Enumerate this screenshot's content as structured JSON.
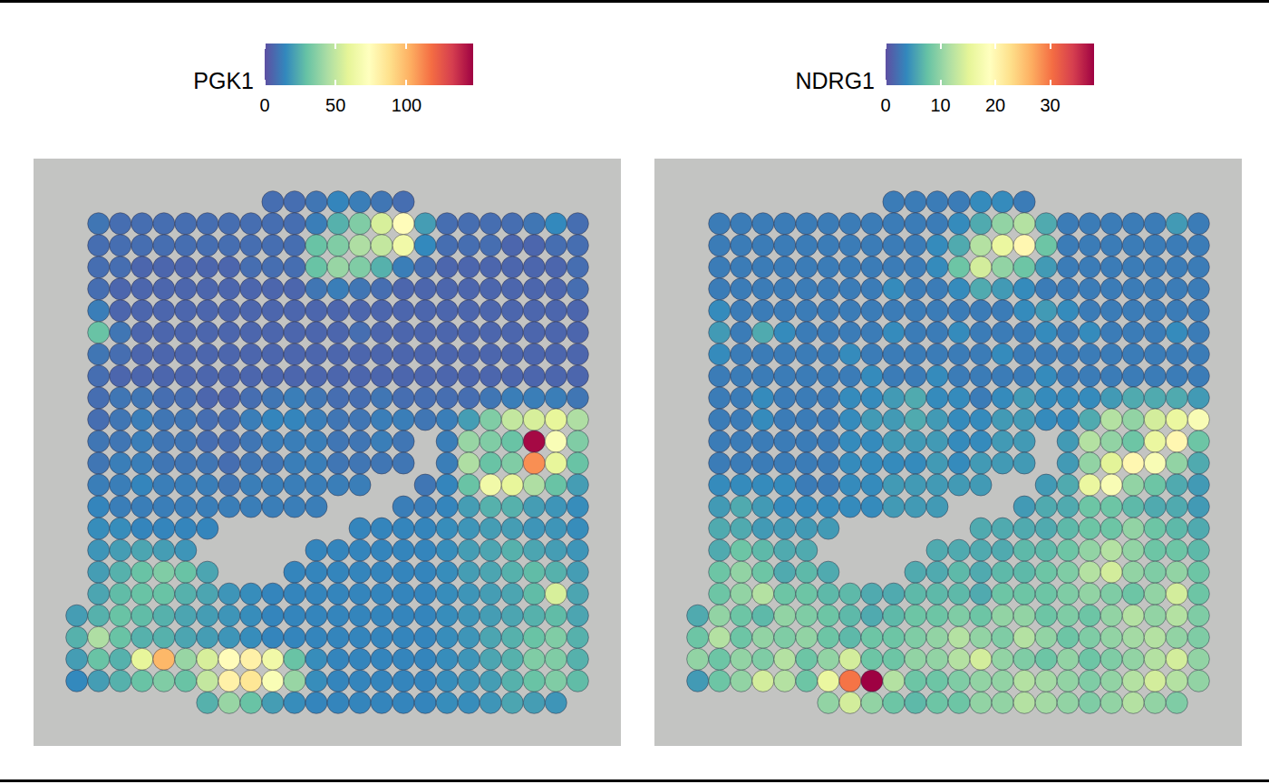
{
  "chart_data": [
    {
      "type": "heatmap",
      "title": "PGK1",
      "tick_labels": false,
      "colorbar": {
        "range": [
          0,
          147
        ],
        "ticks": [
          0,
          50,
          100
        ]
      },
      "cells": [
        [
          null,
          null,
          null,
          null,
          null,
          null,
          null,
          null,
          null,
          8,
          8,
          10,
          14,
          12,
          10,
          8,
          null,
          null,
          null,
          null,
          null,
          null,
          null,
          null
        ],
        [
          null,
          10,
          8,
          8,
          8,
          8,
          8,
          8,
          8,
          8,
          8,
          12,
          25,
          35,
          55,
          75,
          20,
          8,
          8,
          8,
          8,
          10,
          15,
          8
        ],
        [
          null,
          8,
          8,
          8,
          8,
          8,
          8,
          8,
          8,
          8,
          8,
          30,
          35,
          45,
          50,
          65,
          15,
          8,
          8,
          8,
          6,
          6,
          8,
          8
        ],
        [
          null,
          8,
          8,
          6,
          6,
          6,
          6,
          6,
          8,
          8,
          8,
          30,
          40,
          35,
          25,
          12,
          8,
          6,
          6,
          6,
          6,
          6,
          6,
          8
        ],
        [
          null,
          8,
          6,
          6,
          6,
          6,
          6,
          6,
          6,
          6,
          6,
          10,
          12,
          10,
          8,
          6,
          6,
          6,
          6,
          6,
          6,
          6,
          6,
          8
        ],
        [
          null,
          12,
          6,
          6,
          6,
          6,
          6,
          6,
          6,
          6,
          6,
          6,
          6,
          6,
          6,
          6,
          6,
          6,
          6,
          6,
          6,
          6,
          6,
          6
        ],
        [
          null,
          30,
          10,
          6,
          6,
          6,
          6,
          6,
          6,
          6,
          6,
          6,
          6,
          8,
          6,
          6,
          6,
          6,
          6,
          6,
          6,
          6,
          6,
          6
        ],
        [
          null,
          10,
          8,
          6,
          6,
          6,
          6,
          6,
          6,
          6,
          6,
          6,
          6,
          6,
          6,
          6,
          6,
          6,
          6,
          6,
          6,
          6,
          6,
          6
        ],
        [
          null,
          8,
          6,
          6,
          6,
          6,
          6,
          6,
          6,
          6,
          6,
          6,
          6,
          6,
          6,
          6,
          6,
          6,
          6,
          6,
          6,
          6,
          6,
          6
        ],
        [
          null,
          8,
          10,
          10,
          8,
          8,
          6,
          6,
          8,
          10,
          12,
          10,
          8,
          8,
          10,
          8,
          8,
          8,
          8,
          10,
          12,
          12,
          12,
          10
        ],
        [
          null,
          8,
          10,
          12,
          10,
          10,
          8,
          8,
          12,
          14,
          14,
          12,
          10,
          10,
          12,
          12,
          10,
          12,
          20,
          35,
          50,
          55,
          60,
          45
        ],
        [
          null,
          10,
          10,
          12,
          10,
          10,
          8,
          8,
          10,
          12,
          12,
          12,
          10,
          10,
          12,
          10,
          null,
          12,
          40,
          35,
          30,
          145,
          70,
          35
        ],
        [
          null,
          10,
          12,
          12,
          10,
          10,
          10,
          8,
          10,
          10,
          12,
          12,
          10,
          10,
          10,
          10,
          null,
          12,
          45,
          30,
          35,
          110,
          60,
          30
        ],
        [
          null,
          12,
          12,
          14,
          12,
          12,
          12,
          10,
          12,
          12,
          12,
          12,
          12,
          12,
          null,
          null,
          10,
          14,
          30,
          65,
          60,
          45,
          30,
          20
        ],
        [
          null,
          14,
          12,
          12,
          12,
          12,
          12,
          12,
          12,
          12,
          12,
          12,
          null,
          null,
          null,
          12,
          12,
          14,
          20,
          25,
          25,
          20,
          18,
          16
        ],
        [
          null,
          16,
          16,
          14,
          14,
          14,
          14,
          null,
          null,
          null,
          null,
          null,
          null,
          14,
          14,
          14,
          14,
          16,
          18,
          20,
          20,
          18,
          18,
          16
        ],
        [
          null,
          18,
          20,
          22,
          20,
          18,
          null,
          null,
          null,
          null,
          null,
          14,
          14,
          14,
          14,
          14,
          14,
          16,
          20,
          22,
          25,
          22,
          20,
          18
        ],
        [
          null,
          20,
          25,
          30,
          35,
          30,
          22,
          null,
          null,
          null,
          14,
          14,
          14,
          14,
          14,
          14,
          14,
          16,
          20,
          22,
          25,
          28,
          25,
          20
        ],
        [
          null,
          22,
          28,
          30,
          30,
          25,
          22,
          18,
          16,
          14,
          14,
          14,
          14,
          14,
          14,
          14,
          14,
          16,
          18,
          20,
          22,
          28,
          55,
          22
        ],
        [
          20,
          25,
          30,
          28,
          25,
          22,
          20,
          18,
          16,
          14,
          14,
          14,
          14,
          14,
          14,
          14,
          14,
          16,
          18,
          20,
          22,
          25,
          28,
          22
        ],
        [
          25,
          45,
          30,
          25,
          25,
          22,
          20,
          18,
          16,
          14,
          14,
          14,
          14,
          14,
          14,
          14,
          14,
          16,
          18,
          22,
          25,
          30,
          35,
          25
        ],
        [
          20,
          30,
          25,
          60,
          100,
          40,
          55,
          75,
          80,
          65,
          30,
          16,
          14,
          14,
          14,
          14,
          14,
          16,
          18,
          22,
          25,
          35,
          35,
          25
        ],
        [
          15,
          20,
          25,
          30,
          35,
          30,
          50,
          80,
          85,
          70,
          40,
          16,
          14,
          14,
          14,
          14,
          14,
          16,
          18,
          20,
          25,
          30,
          35,
          28
        ],
        [
          null,
          null,
          null,
          null,
          null,
          null,
          25,
          40,
          30,
          20,
          16,
          14,
          14,
          14,
          14,
          14,
          14,
          16,
          16,
          18,
          22,
          20,
          18,
          null
        ]
      ]
    },
    {
      "type": "heatmap",
      "title": "NDRG1",
      "tick_labels": false,
      "colorbar": {
        "range": [
          0,
          38
        ],
        "ticks": [
          0,
          10,
          20,
          30
        ]
      },
      "cells": [
        [
          null,
          null,
          null,
          null,
          null,
          null,
          null,
          null,
          null,
          3,
          3,
          3,
          3,
          4,
          4,
          3,
          null,
          null,
          null,
          null,
          null,
          null,
          null,
          null
        ],
        [
          null,
          3,
          3,
          3,
          3,
          3,
          3,
          3,
          3,
          3,
          3,
          3,
          4,
          6,
          10,
          12,
          6,
          3,
          3,
          3,
          3,
          3,
          5,
          3
        ],
        [
          null,
          3,
          3,
          3,
          3,
          3,
          3,
          3,
          3,
          3,
          3,
          4,
          6,
          12,
          16,
          20,
          8,
          3,
          3,
          3,
          3,
          3,
          3,
          3
        ],
        [
          null,
          3,
          3,
          3,
          3,
          3,
          3,
          3,
          3,
          3,
          3,
          4,
          8,
          14,
          10,
          8,
          5,
          3,
          3,
          3,
          3,
          3,
          3,
          3
        ],
        [
          null,
          3,
          3,
          3,
          3,
          3,
          3,
          3,
          3,
          4,
          3,
          3,
          4,
          6,
          5,
          4,
          3,
          3,
          3,
          3,
          3,
          3,
          3,
          3
        ],
        [
          null,
          4,
          3,
          3,
          3,
          3,
          3,
          3,
          3,
          3,
          3,
          3,
          3,
          3,
          3,
          4,
          5,
          4,
          3,
          3,
          3,
          3,
          3,
          3
        ],
        [
          null,
          5,
          3,
          6,
          4,
          3,
          3,
          3,
          3,
          4,
          3,
          3,
          4,
          3,
          3,
          3,
          4,
          3,
          4,
          3,
          3,
          3,
          4,
          3
        ],
        [
          null,
          4,
          3,
          3,
          3,
          3,
          3,
          4,
          3,
          3,
          3,
          3,
          3,
          3,
          4,
          3,
          3,
          3,
          3,
          3,
          3,
          3,
          3,
          3
        ],
        [
          null,
          3,
          3,
          3,
          3,
          3,
          3,
          3,
          4,
          3,
          3,
          4,
          3,
          3,
          3,
          3,
          4,
          3,
          3,
          3,
          3,
          3,
          3,
          3
        ],
        [
          null,
          3,
          3,
          4,
          3,
          3,
          3,
          4,
          4,
          5,
          6,
          4,
          4,
          3,
          4,
          5,
          4,
          4,
          4,
          5,
          6,
          6,
          6,
          5
        ],
        [
          null,
          3,
          3,
          4,
          3,
          3,
          3,
          4,
          5,
          5,
          6,
          5,
          4,
          4,
          5,
          5,
          4,
          4,
          6,
          12,
          10,
          14,
          16,
          18
        ],
        [
          null,
          3,
          3,
          3,
          3,
          3,
          3,
          4,
          4,
          5,
          5,
          5,
          4,
          4,
          5,
          5,
          null,
          5,
          12,
          10,
          8,
          16,
          20,
          8
        ],
        [
          null,
          3,
          3,
          3,
          3,
          3,
          3,
          4,
          4,
          4,
          4,
          5,
          4,
          5,
          5,
          5,
          null,
          5,
          10,
          15,
          20,
          18,
          10,
          6
        ],
        [
          null,
          4,
          4,
          4,
          4,
          3,
          3,
          4,
          4,
          5,
          5,
          5,
          5,
          5,
          null,
          null,
          5,
          6,
          16,
          18,
          10,
          8,
          6,
          5
        ],
        [
          null,
          5,
          6,
          5,
          4,
          4,
          4,
          4,
          4,
          5,
          5,
          5,
          null,
          null,
          null,
          5,
          6,
          6,
          8,
          8,
          7,
          6,
          6,
          5
        ],
        [
          null,
          6,
          6,
          5,
          5,
          5,
          5,
          null,
          null,
          null,
          null,
          null,
          null,
          6,
          6,
          6,
          6,
          7,
          8,
          8,
          10,
          8,
          7,
          6
        ],
        [
          null,
          6,
          8,
          7,
          6,
          6,
          null,
          null,
          null,
          null,
          null,
          6,
          6,
          6,
          6,
          7,
          7,
          8,
          10,
          12,
          10,
          8,
          8,
          7
        ],
        [
          null,
          8,
          10,
          8,
          6,
          7,
          6,
          null,
          null,
          null,
          6,
          6,
          7,
          6,
          7,
          7,
          8,
          9,
          12,
          14,
          10,
          9,
          10,
          8
        ],
        [
          null,
          8,
          10,
          12,
          8,
          8,
          7,
          7,
          6,
          6,
          7,
          7,
          7,
          6,
          8,
          8,
          8,
          9,
          10,
          9,
          8,
          10,
          14,
          8
        ],
        [
          6,
          10,
          8,
          7,
          10,
          9,
          8,
          7,
          6,
          7,
          8,
          8,
          9,
          8,
          10,
          10,
          8,
          9,
          8,
          10,
          12,
          10,
          12,
          9
        ],
        [
          8,
          12,
          8,
          10,
          9,
          10,
          8,
          7,
          8,
          8,
          9,
          10,
          12,
          10,
          9,
          12,
          10,
          8,
          9,
          10,
          11,
          12,
          10,
          9
        ],
        [
          10,
          8,
          10,
          9,
          12,
          8,
          10,
          14,
          8,
          8,
          10,
          10,
          12,
          14,
          10,
          9,
          8,
          10,
          8,
          9,
          10,
          12,
          14,
          10
        ],
        [
          5,
          8,
          10,
          14,
          12,
          8,
          16,
          30,
          38,
          12,
          8,
          8,
          9,
          10,
          10,
          12,
          11,
          10,
          9,
          10,
          12,
          14,
          12,
          10
        ],
        [
          null,
          null,
          null,
          null,
          null,
          null,
          10,
          14,
          10,
          8,
          7,
          8,
          8,
          10,
          10,
          12,
          11,
          10,
          9,
          10,
          12,
          10,
          9,
          null
        ]
      ]
    }
  ]
}
